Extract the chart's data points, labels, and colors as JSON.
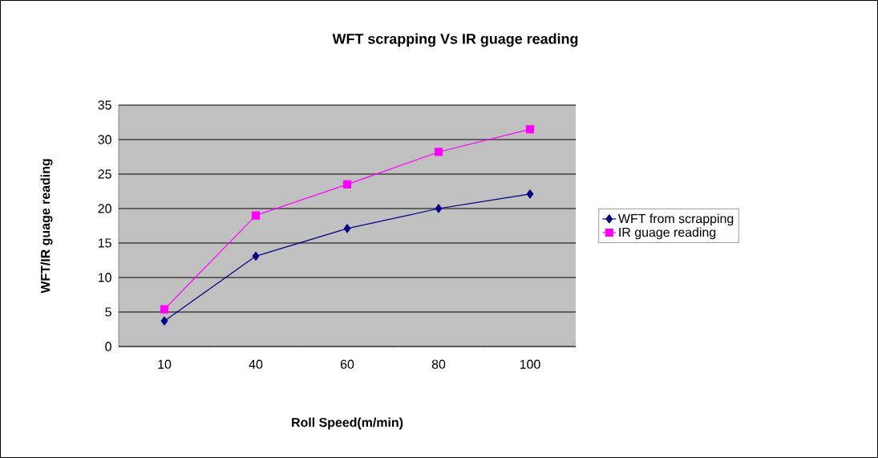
{
  "chart_data": {
    "type": "line",
    "title": "WFT scrapping Vs IR guage reading",
    "xlabel": "Roll Speed(m/min)",
    "ylabel": "WFT/IR guage reading",
    "categories": [
      "10",
      "40",
      "60",
      "80",
      "100"
    ],
    "series": [
      {
        "name": "WFT from scrapping",
        "color": "#000080",
        "marker": "diamond",
        "values": [
          3.7,
          13.1,
          17.1,
          20,
          22.1
        ]
      },
      {
        "name": "IR guage reading",
        "color": "#ff00ff",
        "marker": "square",
        "values": [
          5.4,
          19.0,
          23.5,
          28.2,
          31.5
        ]
      }
    ],
    "ylim": [
      0,
      35
    ],
    "yticks": [
      0,
      5,
      10,
      15,
      20,
      25,
      30,
      35
    ],
    "grid": "y",
    "legend": "right"
  }
}
